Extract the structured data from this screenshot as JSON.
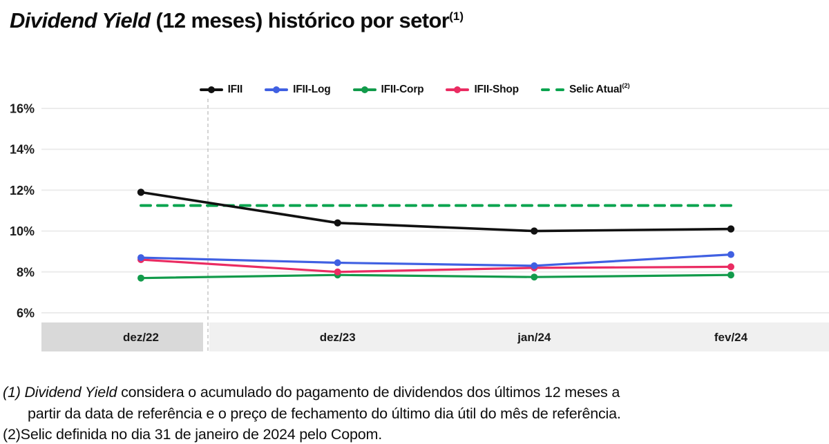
{
  "title": {
    "italic": "Dividend Yield",
    "rest": " (12 meses) histórico por setor",
    "superscript": "(1)"
  },
  "legend": [
    {
      "label": "IFII",
      "sup": "",
      "color": "#111111",
      "style": "solid-dot"
    },
    {
      "label": "IFII-Log",
      "sup": "",
      "color": "#4060e2",
      "style": "solid-dot"
    },
    {
      "label": "IFII-Corp",
      "sup": "",
      "color": "#129b4b",
      "style": "solid-dot"
    },
    {
      "label": "IFII-Shop",
      "sup": "",
      "color": "#ea2c62",
      "style": "solid-dot"
    },
    {
      "label": "Selic Atual",
      "sup": "(2)",
      "color": "#0ba44f",
      "style": "dashed"
    }
  ],
  "chart_data": {
    "type": "line",
    "categories": [
      "dez/22",
      "dez/23",
      "jan/24",
      "fev/24"
    ],
    "series": [
      {
        "name": "IFII",
        "color": "#111111",
        "style": "solid",
        "values": [
          11.9,
          10.4,
          10.0,
          10.1
        ]
      },
      {
        "name": "IFII-Log",
        "color": "#4060e2",
        "style": "solid",
        "values": [
          8.7,
          8.45,
          8.3,
          8.85
        ]
      },
      {
        "name": "IFII-Corp",
        "color": "#129b4b",
        "style": "solid",
        "values": [
          7.7,
          7.85,
          7.75,
          7.85
        ]
      },
      {
        "name": "IFII-Shop",
        "color": "#ea2c62",
        "style": "solid",
        "values": [
          8.6,
          8.0,
          8.2,
          8.25
        ]
      },
      {
        "name": "Selic Atual",
        "color": "#0ba44f",
        "style": "dashed",
        "values": [
          11.25,
          11.25,
          11.25,
          11.25
        ]
      }
    ],
    "y_ticks": [
      "16%",
      "14%",
      "12%",
      "10%",
      "8%",
      "6%"
    ],
    "y_tick_values": [
      16,
      14,
      12,
      10,
      8,
      6
    ],
    "ylim": [
      6,
      16
    ],
    "grid": true,
    "legend_position": "top",
    "divider_after_category": "dez/22",
    "highlighted_category": "dez/22"
  },
  "footnotes": {
    "line1_italic": "(1) Dividend Yield",
    "line1_rest": " considera o acumulado do pagamento de dividendos dos últimos 12 meses a",
    "line2": "partir da data de referência e o preço de fechamento do último dia útil do mês de referência.",
    "line3": "(2)Selic definida no dia 31 de janeiro de 2024 pelo Copom."
  },
  "colors": {
    "gridline": "#ececec",
    "divider": "#c9c9c9",
    "band_highlight": "#d9d9d9",
    "band_normal": "#f0f0f0",
    "tick_text": "#1a1a1a"
  }
}
